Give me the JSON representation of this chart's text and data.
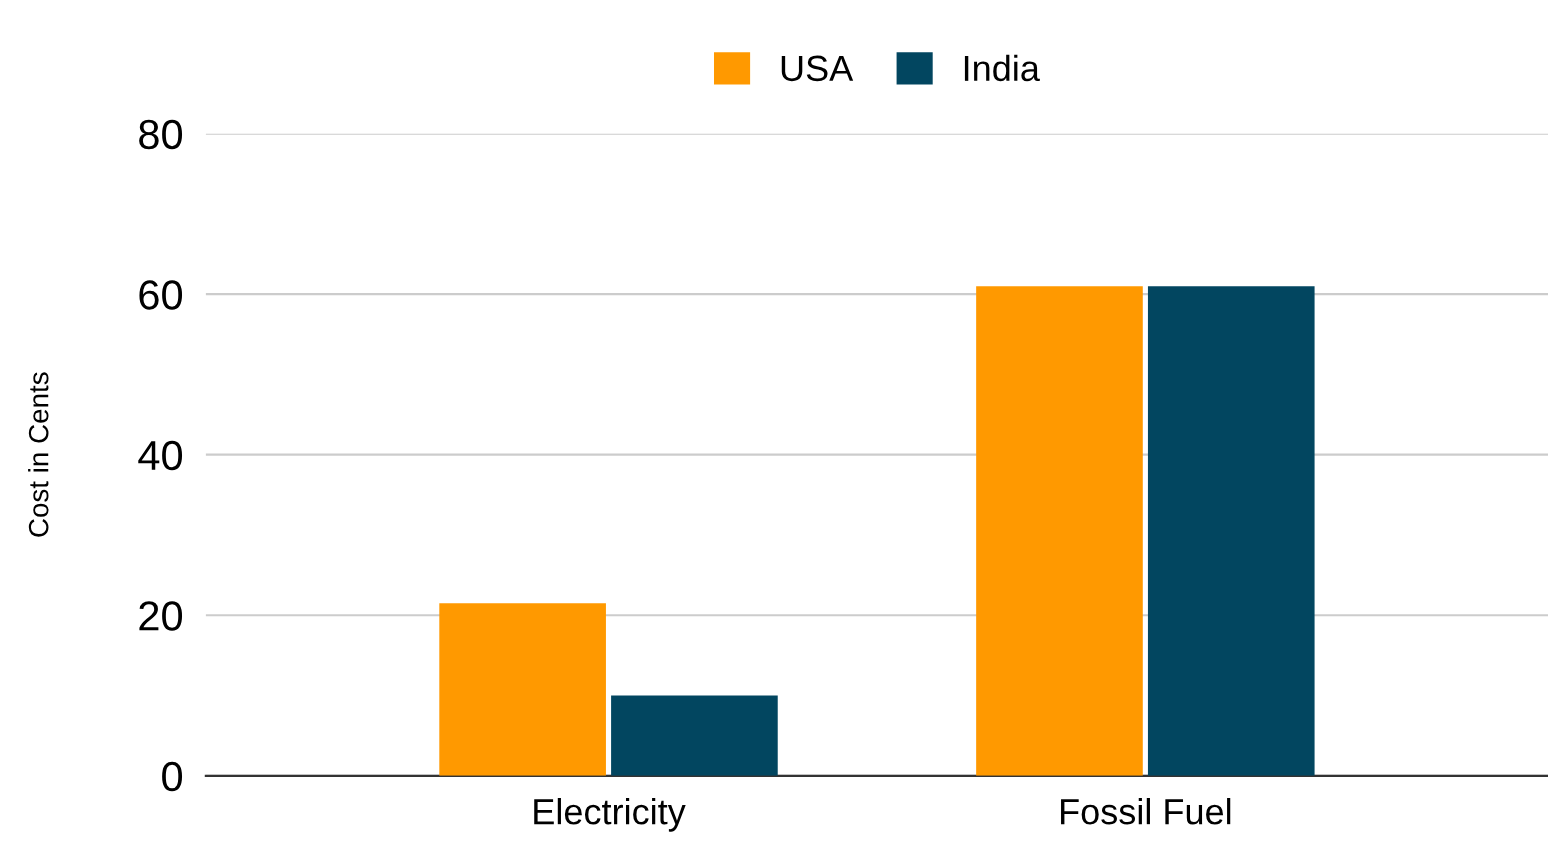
{
  "chart_data": {
    "type": "bar",
    "ylabel": "Cost in Cents",
    "categories": [
      "Electricity",
      "Fossil Fuel"
    ],
    "series": [
      {
        "name": "USA",
        "color": "#ff9900",
        "values": [
          21.5,
          61
        ]
      },
      {
        "name": "India",
        "color": "#024660",
        "values": [
          10,
          61
        ]
      }
    ],
    "ylim": [
      0,
      80
    ],
    "yticks": [
      0,
      20,
      40,
      60,
      80
    ],
    "grid": "y",
    "legend": "top"
  }
}
